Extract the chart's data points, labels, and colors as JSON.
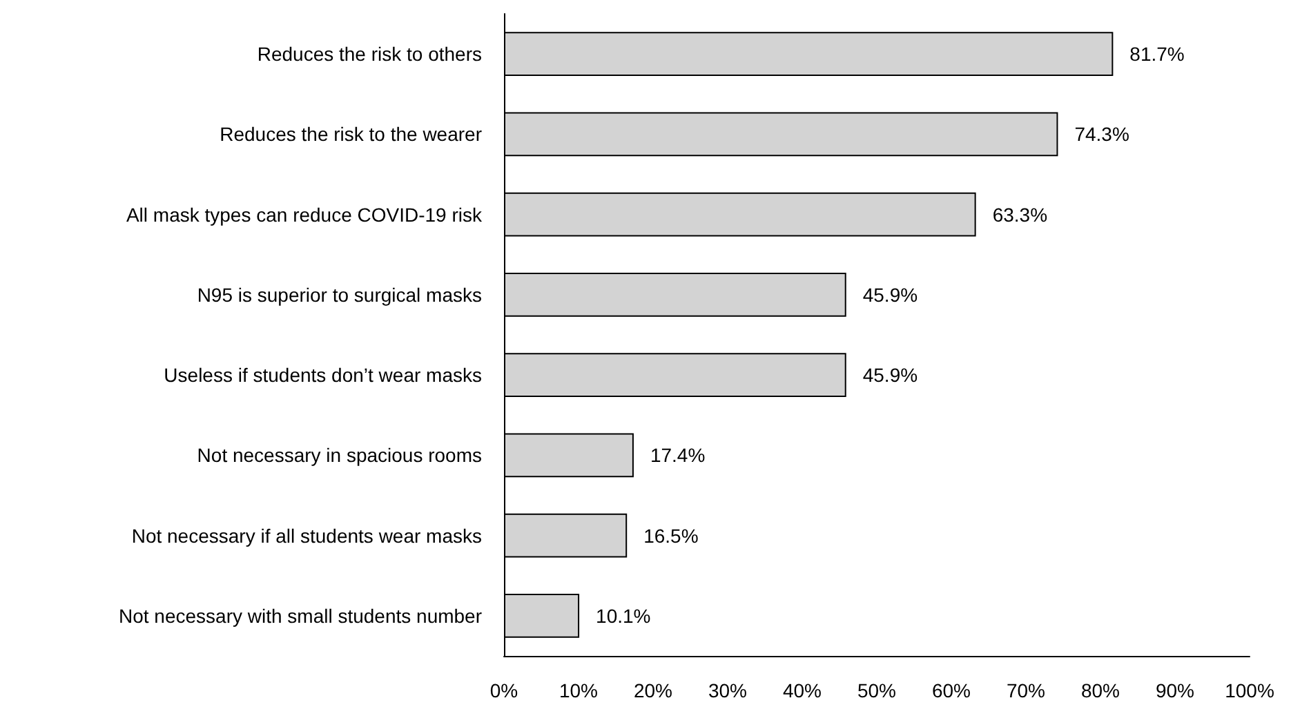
{
  "chart_data": {
    "type": "bar",
    "orientation": "horizontal",
    "categories": [
      "Reduces the risk to others",
      "Reduces the risk to the wearer",
      "All mask types can reduce COVID-19 risk",
      "N95 is superior to surgical masks",
      "Useless if students don’t wear masks",
      "Not necessary in spacious rooms",
      "Not necessary if all students wear masks",
      "Not necessary with small students number"
    ],
    "values": [
      81.7,
      74.3,
      63.3,
      45.9,
      45.9,
      17.4,
      16.5,
      10.1
    ],
    "value_labels": [
      "81.7%",
      "74.3%",
      "63.3%",
      "45.9%",
      "45.9%",
      "17.4%",
      "16.5%",
      "10.1%"
    ],
    "color": "#d3d3d3",
    "xlim": [
      0,
      100
    ],
    "xticks": [
      {
        "value": 0,
        "label": "0%"
      },
      {
        "value": 10,
        "label": "10%"
      },
      {
        "value": 20,
        "label": "20%"
      },
      {
        "value": 30,
        "label": "30%"
      },
      {
        "value": 40,
        "label": "40%"
      },
      {
        "value": 50,
        "label": "50%"
      },
      {
        "value": 60,
        "label": "60%"
      },
      {
        "value": 70,
        "label": "70%"
      },
      {
        "value": 80,
        "label": "80%"
      },
      {
        "value": 90,
        "label": "90%"
      },
      {
        "value": 100,
        "label": "100%"
      }
    ],
    "grid": false
  }
}
